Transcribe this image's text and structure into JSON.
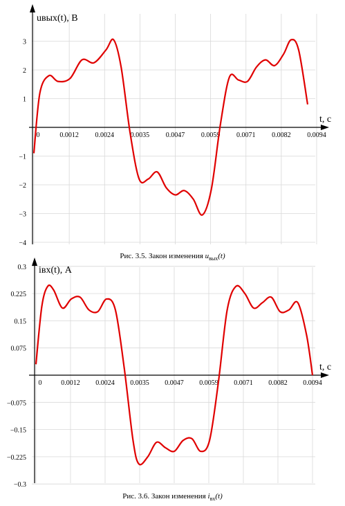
{
  "chart_data": [
    {
      "type": "line",
      "ylabel": "u<sub>вых</sub>(t), B",
      "ylabel_text": "uвых(t), B",
      "xlabel": "t, c",
      "x_ticks": [
        "0",
        "0.0012",
        "0.0024",
        "0.0035",
        "0.0047",
        "0.0059",
        "0.0071",
        "0.0082",
        "0.0094"
      ],
      "y_ticks": [
        "3",
        "2",
        "1",
        "−1",
        "−2",
        "−3",
        "−4"
      ],
      "xlim": [
        0,
        0.0094
      ],
      "ylim": [
        -4,
        4
      ],
      "grid": true,
      "series": [
        {
          "color": "#e00000",
          "x": [
            0,
            0.0002,
            0.0005,
            0.0008,
            0.0012,
            0.0016,
            0.002,
            0.0024,
            0.00265,
            0.0029,
            0.0032,
            0.0035,
            0.0038,
            0.0041,
            0.0044,
            0.0047,
            0.005,
            0.0053,
            0.0056,
            0.0059,
            0.0062,
            0.0065,
            0.0068,
            0.0071,
            0.0074,
            0.0077,
            0.008,
            0.0083,
            0.00855,
            0.0088,
            0.0091,
            0.0094
          ],
          "y": [
            -0.9,
            1.2,
            1.8,
            1.6,
            1.7,
            2.35,
            2.25,
            2.7,
            3.05,
            2.1,
            -0.2,
            -1.8,
            -1.8,
            -1.55,
            -2.1,
            -2.35,
            -2.2,
            -2.5,
            -3.05,
            -2.15,
            0.1,
            1.75,
            1.65,
            1.6,
            2.1,
            2.35,
            2.15,
            2.55,
            3.05,
            2.7,
            0.8,
            null
          ]
        }
      ],
      "caption_prefix": "Рис. 3.5. Закон изменения ",
      "caption_var": "u",
      "caption_sub": "вых",
      "caption_suffix": "(t)"
    },
    {
      "type": "line",
      "ylabel_text": "iвх(t), A",
      "xlabel": "t, c",
      "x_ticks": [
        "0",
        "0.0012",
        "0.0024",
        "0.0035",
        "0.0047",
        "0.0059",
        "0.0071",
        "0.0082",
        "0.0094"
      ],
      "y_ticks": [
        "0.3",
        "0.225",
        "0.15",
        "0.075",
        "−0.075",
        "−0.15",
        "−0.225",
        "−0.3"
      ],
      "xlim": [
        0,
        0.0094
      ],
      "ylim": [
        -0.3,
        0.3
      ],
      "grid": true,
      "series": [
        {
          "color": "#e00000",
          "x": [
            0,
            0.0002,
            0.0004,
            0.0006,
            0.0009,
            0.0012,
            0.0015,
            0.0018,
            0.0021,
            0.0024,
            0.0027,
            0.003,
            0.0033,
            0.0035,
            0.0038,
            0.0041,
            0.0044,
            0.0047,
            0.005,
            0.0053,
            0.0056,
            0.0059,
            0.0062,
            0.0065,
            0.0068,
            0.0071,
            0.0074,
            0.0077,
            0.008,
            0.0083,
            0.0086,
            0.0089,
            0.0092,
            0.0094
          ],
          "y": [
            0.03,
            0.19,
            0.245,
            0.235,
            0.185,
            0.21,
            0.215,
            0.18,
            0.175,
            0.21,
            0.18,
            0.02,
            -0.18,
            -0.245,
            -0.225,
            -0.185,
            -0.2,
            -0.21,
            -0.18,
            -0.175,
            -0.21,
            -0.18,
            -0.02,
            0.18,
            0.245,
            0.225,
            0.185,
            0.2,
            0.215,
            0.175,
            0.18,
            0.2,
            0.11,
            0.0
          ]
        }
      ],
      "caption_prefix": "Рис. 3.6. Закон изменения ",
      "caption_var": "i",
      "caption_sub": "вх",
      "caption_suffix": "(t)"
    }
  ]
}
